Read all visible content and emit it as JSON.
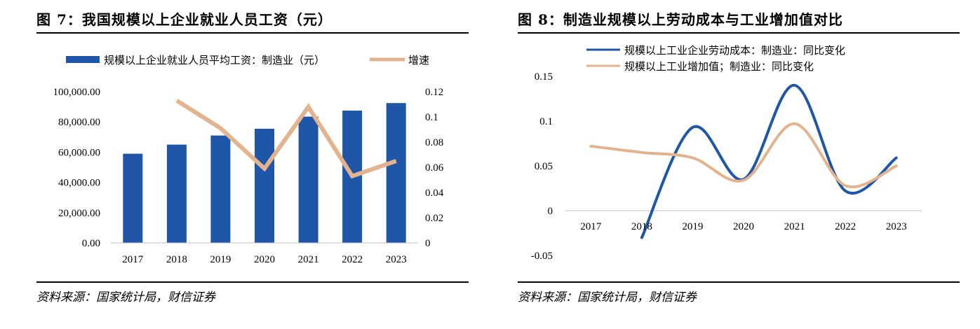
{
  "figures": [
    {
      "title": "图 7：我国规模以上企业就业人员工资（元）",
      "source": "资料来源：国家统计局，财信证券"
    },
    {
      "title": "图 8：制造业规模以上劳动成本与工业增加值对比",
      "source": "资料来源：国家统计局，财信证券"
    }
  ],
  "chart_data": [
    {
      "type": "bar",
      "categories": [
        "2017",
        "2018",
        "2019",
        "2020",
        "2021",
        "2022",
        "2023"
      ],
      "series": [
        {
          "name": "规模以上企业就业人员平均工资：制造业（元）",
          "type": "bar",
          "axis": "left",
          "color": "#1f56a8",
          "values": [
            59000,
            65000,
            71000,
            75500,
            83500,
            87500,
            92500
          ]
        },
        {
          "name": "增速",
          "type": "line",
          "axis": "right",
          "color": "#e2b38c",
          "values": [
            null,
            0.113,
            0.091,
            0.059,
            0.108,
            0.053,
            0.065
          ]
        }
      ],
      "yticks_left": [
        "0.00",
        "20,000.00",
        "40,000.00",
        "60,000.00",
        "80,000.00",
        "100,000.00"
      ],
      "yticks_right": [
        "0",
        "0.02",
        "0.04",
        "0.06",
        "0.08",
        "0.1",
        "0.12"
      ],
      "ylim_left": [
        0,
        100000
      ],
      "ylim_right": [
        0,
        0.12
      ],
      "legend": "top",
      "grid": false
    },
    {
      "type": "line",
      "smooth": true,
      "categories": [
        "2017",
        "2018",
        "2019",
        "2020",
        "2021",
        "2022",
        "2023"
      ],
      "series": [
        {
          "name": "规模以上工业企业劳动成本：制造业：同比变化",
          "color": "#1f56a8",
          "values": [
            null,
            -0.03,
            0.093,
            0.035,
            0.14,
            0.022,
            0.059
          ]
        },
        {
          "name": "规模以上工业增加值；制造业：同比变化",
          "color": "#e2b38c",
          "values": [
            0.072,
            0.065,
            0.059,
            0.034,
            0.097,
            0.028,
            0.05
          ]
        }
      ],
      "yticks": [
        "-0.05",
        "0",
        "0.05",
        "0.1",
        "0.15"
      ],
      "ylim": [
        -0.05,
        0.15
      ],
      "legend": "top",
      "grid": false
    }
  ]
}
